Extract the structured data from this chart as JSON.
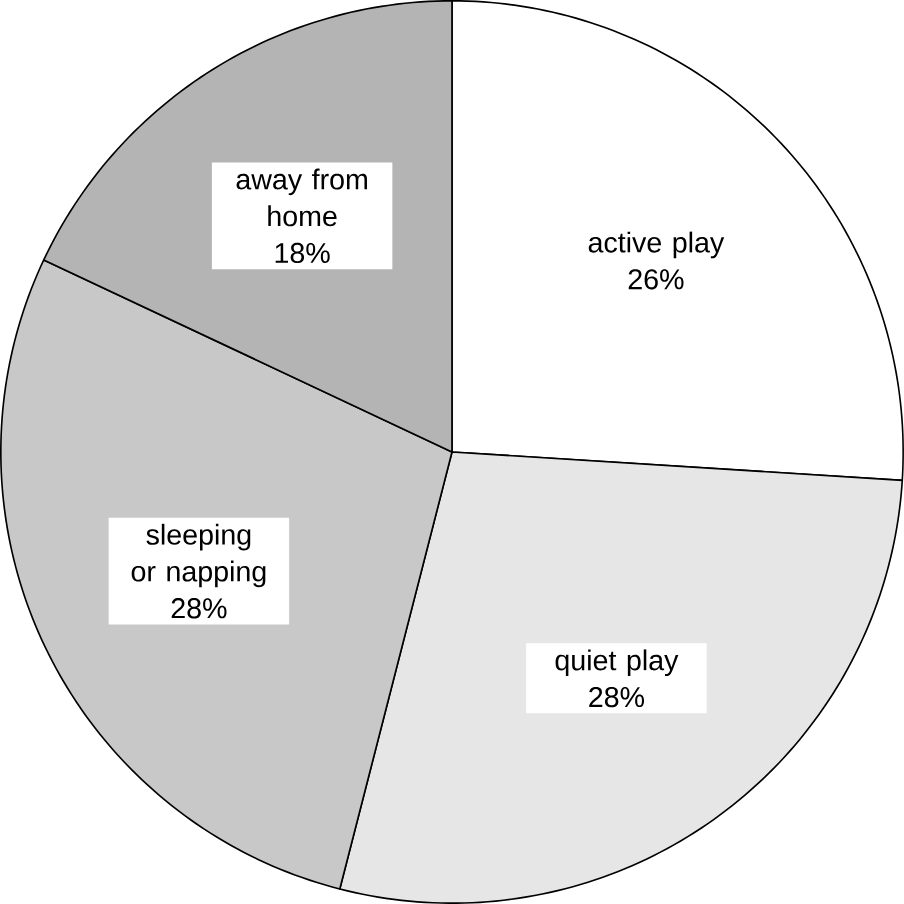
{
  "chart_data": {
    "type": "pie",
    "categories": [
      "active play",
      "quiet play",
      "sleeping or napping",
      "away from home"
    ],
    "values": [
      26,
      28,
      28,
      18
    ],
    "value_labels": [
      "26%",
      "28%",
      "28%",
      "18%"
    ],
    "colors": [
      "#ffffff",
      "#e6e6e6",
      "#c8c8c8",
      "#b4b4b4"
    ]
  }
}
